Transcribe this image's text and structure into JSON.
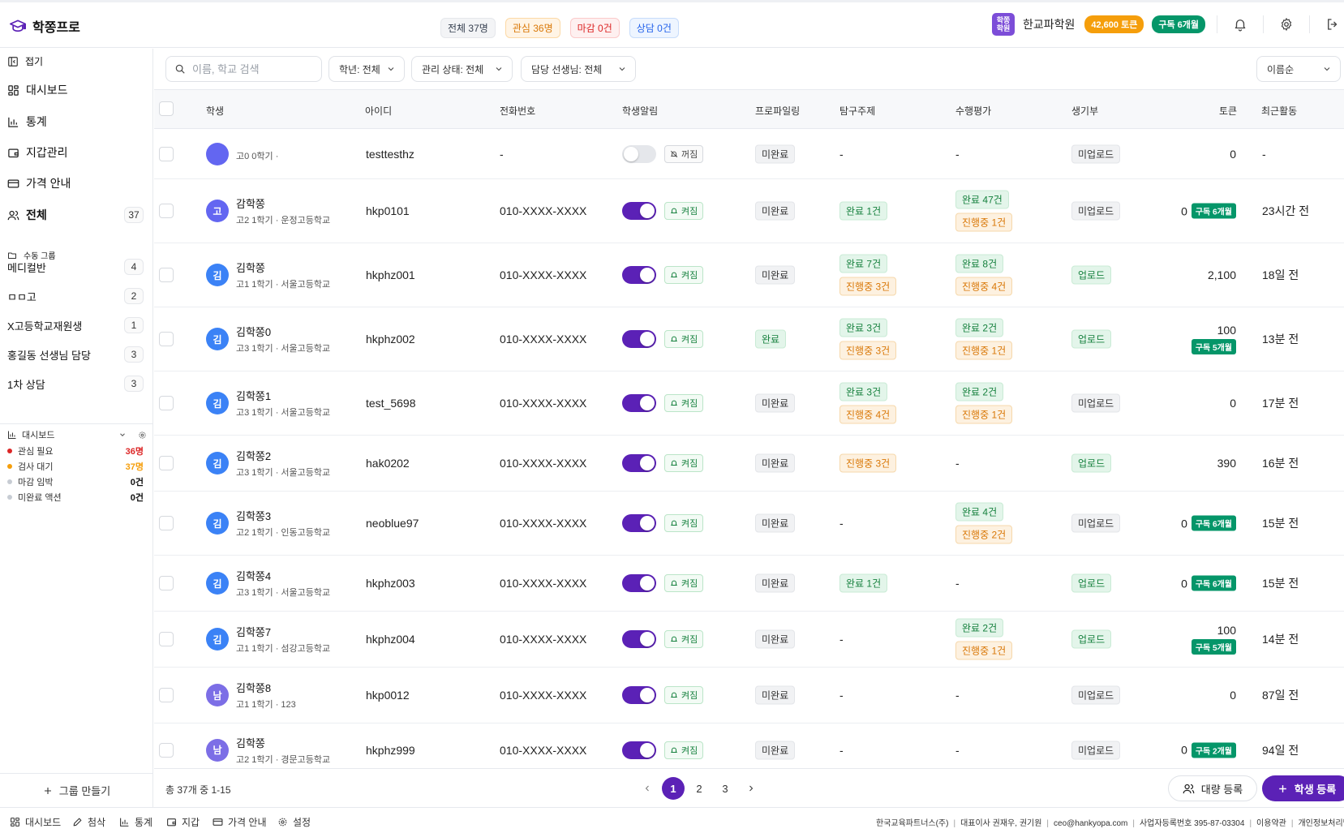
{
  "app": {
    "title": "학쫑프로"
  },
  "header": {
    "pills": {
      "total": "전체 37명",
      "interest": "관심 36명",
      "deadline": "마감 0건",
      "consult": "상담 0건"
    },
    "academy_badge": "학쫑\n학원",
    "academy_name": "한교파학원",
    "tokens": "42,600 토큰",
    "subscription": "구독 6개월"
  },
  "sidebar": {
    "collapse": "접기",
    "nav": {
      "dashboard": "대시보드",
      "stats": "통계",
      "wallet": "지갑관리",
      "pricing": "가격 안내",
      "all": "전체",
      "all_count": "37"
    },
    "manual_group_title": "수동 그룹",
    "groups": [
      {
        "name": "메디컬반",
        "count": "4"
      },
      {
        "name": "ㅁㅁ고",
        "count": "2"
      },
      {
        "name": "X고등학교재원생",
        "count": "1"
      },
      {
        "name": "홍길동 선생님 담당",
        "count": "3"
      },
      {
        "name": "1차 상담",
        "count": "3"
      }
    ],
    "dashboard_widget": {
      "title": "대시보드",
      "rows": [
        {
          "label": "관심 필요",
          "value": "36명",
          "color": "#dc2626"
        },
        {
          "label": "검사 대기",
          "value": "37명",
          "color": "#f59e0b"
        },
        {
          "label": "마감 임박",
          "value": "0건",
          "color": "#111111"
        },
        {
          "label": "미완료 액션",
          "value": "0건",
          "color": "#111111"
        }
      ]
    },
    "make_group": "그룹 만들기"
  },
  "filters": {
    "search_placeholder": "이름, 학교 검색",
    "grade": "학년: 전체",
    "status": "관리 상태: 전체",
    "teacher": "담당 선생님: 전체",
    "sort": "이름순"
  },
  "table": {
    "headers": {
      "student": "학생",
      "id": "아이디",
      "phone": "전화번호",
      "alarm": "학생알림",
      "profiling": "프로파일링",
      "inquiry": "탐구주제",
      "perf": "수행평가",
      "record": "생기부",
      "token": "토큰",
      "recent": "최근활동"
    },
    "rows": [
      {
        "initial": "",
        "name": "",
        "sub": "고0 0학기 ·",
        "id": "testtesthz",
        "phone": "-",
        "alarm_on": false,
        "alarm": "꺼짐",
        "profiling": {
          "text": "미완료",
          "style": "gray"
        },
        "inquiry": [],
        "inquiry_empty": "-",
        "perf": [],
        "perf_empty": "-",
        "record": {
          "text": "미업로드",
          "style": "gray"
        },
        "token": "0",
        "token_sub": "",
        "recent": "-"
      },
      {
        "initial": "고",
        "name": "감학쫑",
        "sub": "고2 1학기 · 운정고등학교",
        "id": "hkp0101",
        "phone": "010-XXXX-XXXX",
        "alarm_on": true,
        "alarm": "켜짐",
        "profiling": {
          "text": "미완료",
          "style": "gray"
        },
        "inquiry": [
          {
            "text": "완료 1건",
            "style": "green"
          }
        ],
        "perf": [
          {
            "text": "완료 47건",
            "style": "green"
          },
          {
            "text": "진행중 1건",
            "style": "orange"
          }
        ],
        "record": {
          "text": "미업로드",
          "style": "gray"
        },
        "token": "0",
        "token_sub": "구독 6개월",
        "recent": "23시간 전"
      },
      {
        "initial": "김",
        "name": "김학쫑",
        "sub": "고1 1학기 · 서울고등학교",
        "id": "hkphz001",
        "phone": "010-XXXX-XXXX",
        "alarm_on": true,
        "alarm": "켜짐",
        "profiling": {
          "text": "미완료",
          "style": "gray"
        },
        "inquiry": [
          {
            "text": "완료 7건",
            "style": "green"
          },
          {
            "text": "진행중 3건",
            "style": "orange"
          }
        ],
        "perf": [
          {
            "text": "완료 8건",
            "style": "green"
          },
          {
            "text": "진행중 4건",
            "style": "orange"
          }
        ],
        "record": {
          "text": "업로드",
          "style": "green"
        },
        "token": "2,100",
        "token_sub": "",
        "recent": "18일 전"
      },
      {
        "initial": "김",
        "name": "김학쫑0",
        "sub": "고3 1학기 · 서울고등학교",
        "id": "hkphz002",
        "phone": "010-XXXX-XXXX",
        "alarm_on": true,
        "alarm": "켜짐",
        "profiling": {
          "text": "완료",
          "style": "green"
        },
        "inquiry": [
          {
            "text": "완료 3건",
            "style": "green"
          },
          {
            "text": "진행중 3건",
            "style": "orange"
          }
        ],
        "perf": [
          {
            "text": "완료 2건",
            "style": "green"
          },
          {
            "text": "진행중 1건",
            "style": "orange"
          }
        ],
        "record": {
          "text": "업로드",
          "style": "green"
        },
        "token": "100",
        "token_sub": "구독 5개월",
        "token_stack": true,
        "recent": "13분 전"
      },
      {
        "initial": "김",
        "name": "김학쫑1",
        "sub": "고3 1학기 · 서울고등학교",
        "id": "test_5698",
        "phone": "010-XXXX-XXXX",
        "alarm_on": true,
        "alarm": "켜짐",
        "profiling": {
          "text": "미완료",
          "style": "gray"
        },
        "inquiry": [
          {
            "text": "완료 3건",
            "style": "green"
          },
          {
            "text": "진행중 4건",
            "style": "orange"
          }
        ],
        "perf": [
          {
            "text": "완료 2건",
            "style": "green"
          },
          {
            "text": "진행중 1건",
            "style": "orange"
          }
        ],
        "record": {
          "text": "미업로드",
          "style": "gray"
        },
        "token": "0",
        "token_sub": "",
        "recent": "17분 전"
      },
      {
        "initial": "김",
        "name": "김학쫑2",
        "sub": "고3 1학기 · 서울고등학교",
        "id": "hak0202",
        "phone": "010-XXXX-XXXX",
        "alarm_on": true,
        "alarm": "켜짐",
        "profiling": {
          "text": "미완료",
          "style": "gray"
        },
        "inquiry": [
          {
            "text": "진행중 3건",
            "style": "orange"
          }
        ],
        "perf": [],
        "perf_empty": "-",
        "record": {
          "text": "업로드",
          "style": "green"
        },
        "token": "390",
        "token_sub": "",
        "recent": "16분 전"
      },
      {
        "initial": "김",
        "name": "김학쫑3",
        "sub": "고2 1학기 · 인동고등학교",
        "id": "neoblue97",
        "phone": "010-XXXX-XXXX",
        "alarm_on": true,
        "alarm": "켜짐",
        "profiling": {
          "text": "미완료",
          "style": "gray"
        },
        "inquiry": [],
        "inquiry_empty": "-",
        "perf": [
          {
            "text": "완료 4건",
            "style": "green"
          },
          {
            "text": "진행중 2건",
            "style": "orange"
          }
        ],
        "record": {
          "text": "미업로드",
          "style": "gray"
        },
        "token": "0",
        "token_sub": "구독 6개월",
        "recent": "15분 전"
      },
      {
        "initial": "김",
        "name": "김학쫑4",
        "sub": "고3 1학기 · 서울고등학교",
        "id": "hkphz003",
        "phone": "010-XXXX-XXXX",
        "alarm_on": true,
        "alarm": "켜짐",
        "profiling": {
          "text": "미완료",
          "style": "gray"
        },
        "inquiry": [
          {
            "text": "완료 1건",
            "style": "green"
          }
        ],
        "perf": [],
        "perf_empty": "-",
        "record": {
          "text": "업로드",
          "style": "green"
        },
        "token": "0",
        "token_sub": "구독 6개월",
        "recent": "15분 전"
      },
      {
        "initial": "김",
        "name": "김학쫑7",
        "sub": "고1 1학기 · 섬강고등학교",
        "id": "hkphz004",
        "phone": "010-XXXX-XXXX",
        "alarm_on": true,
        "alarm": "켜짐",
        "profiling": {
          "text": "미완료",
          "style": "gray"
        },
        "inquiry": [],
        "inquiry_empty": "-",
        "perf": [
          {
            "text": "완료 2건",
            "style": "green"
          },
          {
            "text": "진행중 1건",
            "style": "orange"
          }
        ],
        "record": {
          "text": "업로드",
          "style": "green"
        },
        "token": "100",
        "token_sub": "구독 5개월",
        "token_stack": true,
        "recent": "14분 전"
      },
      {
        "initial": "남",
        "name": "김학쫑8",
        "sub": "고1 1학기 · 123",
        "id": "hkp0012",
        "phone": "010-XXXX-XXXX",
        "alarm_on": true,
        "alarm": "켜짐",
        "profiling": {
          "text": "미완료",
          "style": "gray"
        },
        "inquiry": [],
        "inquiry_empty": "-",
        "perf": [],
        "perf_empty": "-",
        "record": {
          "text": "미업로드",
          "style": "gray"
        },
        "token": "0",
        "token_sub": "",
        "recent": "87일 전"
      },
      {
        "initial": "남",
        "name": "김학쫑",
        "sub": "고2 1학기 · 경문고등학교",
        "id": "hkphz999",
        "phone": "010-XXXX-XXXX",
        "alarm_on": true,
        "alarm": "켜짐",
        "profiling": {
          "text": "미완료",
          "style": "gray"
        },
        "inquiry": [],
        "inquiry_empty": "-",
        "perf": [],
        "perf_empty": "-",
        "record": {
          "text": "미업로드",
          "style": "gray"
        },
        "token": "0",
        "token_sub": "구독 2개월",
        "recent": "94일 전"
      }
    ]
  },
  "footer": {
    "count": "총 37개 중 1-15",
    "pages": [
      "1",
      "2",
      "3"
    ],
    "bulk": "대량 등록",
    "add": "학생 등록"
  },
  "bottombar": {
    "nav": {
      "dashboard": "대시보드",
      "review": "첨삭",
      "stats": "통계",
      "wallet": "지갑",
      "pricing": "가격 안내",
      "settings": "설정"
    },
    "corp": [
      "한국교육파트너스(주)",
      "대표이사 권재우, 권기원",
      "ceo@hankyopa.com",
      "사업자등록번호 395-87-03304",
      "이용약관",
      "개인정보처리방침"
    ]
  },
  "colors": {
    "accent": "#5b21b6",
    "avatar_indigo": "#6366f1",
    "avatar_blue": "#3b82f6",
    "avatar_purple": "#7c6ee6"
  }
}
